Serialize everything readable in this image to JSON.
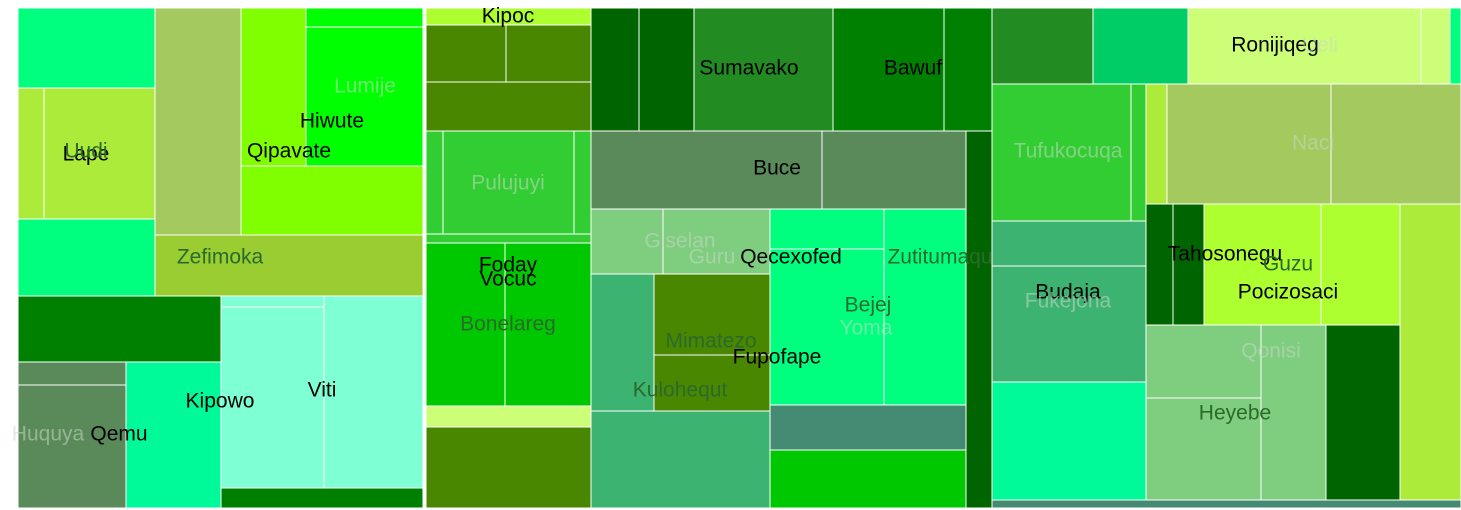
{
  "chart_data": {
    "type": "treemap",
    "legend": "none",
    "label_colors": {
      "dark": "#000000",
      "muted": "#2b6a2b",
      "faint": "#c8d8c8"
    },
    "nodes": [
      {
        "name": "Lape",
        "label": "Lape",
        "label_tone": "dark",
        "color": "#00FF7F",
        "value": 117,
        "level": "top"
      },
      {
        "name": "Zefimoka",
        "label": "Zefimoka",
        "label_tone": "muted",
        "color": "#9ACD32",
        "value": 44,
        "level": "top"
      },
      {
        "name": "Hiwute",
        "label": "Hiwute",
        "label_tone": "dark",
        "color": "#7FFF00",
        "value": 100,
        "level": "top"
      },
      {
        "name": "Lumije",
        "label": "Lumije",
        "label_tone": "faint",
        "color": "#00FF00",
        "value": 100,
        "level": "child"
      },
      {
        "name": "Qipavate",
        "label": "Qipavate",
        "label_tone": "dark",
        "color": "#7FFF00",
        "value": 40,
        "level": "child"
      },
      {
        "name": "Uudi",
        "label": "Uudi",
        "label_tone": "muted",
        "color": "#ADEB3A",
        "value": 24,
        "level": "child"
      },
      {
        "name": "Qemu",
        "label": "Qemu",
        "label_tone": "dark",
        "color": "#008000",
        "value": 75,
        "level": "top"
      },
      {
        "name": "Huquya",
        "label": "Huquya",
        "label_tone": "faint",
        "color": "#5A8A5A",
        "value": 40,
        "level": "child"
      },
      {
        "name": "Kipowo",
        "label": "Kipowo",
        "label_tone": "dark",
        "color": "#00FA9A",
        "value": 40,
        "level": "top"
      },
      {
        "name": "Viti",
        "label": "Viti",
        "label_tone": "dark",
        "color": "#7FFFD4",
        "value": 80,
        "level": "top"
      },
      {
        "name": "Kipoc",
        "label": "Kipoc",
        "label_tone": "dark",
        "color": "#ADFF2F",
        "value": 20,
        "level": "top"
      },
      {
        "name": "Pulujuyi",
        "label": "Pulujuyi",
        "label_tone": "faint",
        "color": "#32CD32",
        "value": 40,
        "level": "top"
      },
      {
        "name": "Foday",
        "label": "Foday",
        "label_tone": "dark",
        "color": "#00C800",
        "value": 60,
        "level": "top"
      },
      {
        "name": "Vocuc",
        "label": "Vocuc",
        "label_tone": "dark",
        "color": "#00C800",
        "value": 60,
        "level": "child"
      },
      {
        "name": "Bonelareg",
        "label": "Bonelareg",
        "label_tone": "muted",
        "color": "#00C800",
        "value": 30,
        "level": "child"
      },
      {
        "name": "Sumavako",
        "label": "Sumavako",
        "label_tone": "dark",
        "color": "#228B22",
        "value": 60,
        "level": "top"
      },
      {
        "name": "Bawuf",
        "label": "Bawuf",
        "label_tone": "dark",
        "color": "#008000",
        "value": 60,
        "level": "top"
      },
      {
        "name": "Buce",
        "label": "Buce",
        "label_tone": "dark",
        "color": "#5A8A5A",
        "value": 50,
        "level": "top"
      },
      {
        "name": "Giselan",
        "label": "Giselan",
        "label_tone": "faint",
        "color": "#7FCD7F",
        "value": 30,
        "level": "top"
      },
      {
        "name": "Guru",
        "label": "Guru",
        "label_tone": "faint",
        "color": "#7FCD7F",
        "value": 20,
        "level": "child"
      },
      {
        "name": "Qecexofed",
        "label": "Qecexofed",
        "label_tone": "dark",
        "color": "#00FF7F",
        "value": 20,
        "level": "top"
      },
      {
        "name": "Zutitumaqu",
        "label": "Zutitumaqu",
        "label_tone": "muted",
        "color": "#00FF7F",
        "value": 40,
        "level": "top"
      },
      {
        "name": "Bejej",
        "label": "Bejej",
        "label_tone": "muted",
        "color": "#00FF7F",
        "value": 50,
        "level": "top"
      },
      {
        "name": "Yoma",
        "label": "Yoma",
        "label_tone": "faint",
        "color": "#00FF7F",
        "value": 30,
        "level": "child"
      },
      {
        "name": "Mimatezo",
        "label": "Mimatezo",
        "label_tone": "muted",
        "color": "#4A8700",
        "value": 30,
        "level": "top"
      },
      {
        "name": "Fupofape",
        "label": "Fupofape",
        "label_tone": "dark",
        "color": "#00FF7F",
        "value": 40,
        "level": "top"
      },
      {
        "name": "Kulohequt",
        "label": "Kulohequt",
        "label_tone": "muted",
        "color": "#3CB371",
        "value": 50,
        "level": "top"
      },
      {
        "name": "Tufukocuqa",
        "label": "Tufukocuqa",
        "label_tone": "faint",
        "color": "#32CD32",
        "value": 50,
        "level": "top"
      },
      {
        "name": "Budaja",
        "label": "Budaja",
        "label_tone": "dark",
        "color": "#3CB371",
        "value": 60,
        "level": "top"
      },
      {
        "name": "Fukejona",
        "label": "Fukejona",
        "label_tone": "faint",
        "color": "#3CB371",
        "value": 30,
        "level": "child"
      },
      {
        "name": "Ronijiqeg",
        "label": "Ronijiqeg",
        "label_tone": "dark",
        "color": "#CCFF77",
        "value": 40,
        "level": "top"
      },
      {
        "name": "Ueli",
        "label": "Ueli",
        "label_tone": "faint",
        "color": "#CCFF77",
        "value": 10,
        "level": "child"
      },
      {
        "name": "Naci",
        "label": "Naci",
        "label_tone": "faint",
        "color": "#A3C95F",
        "value": 50,
        "level": "top"
      },
      {
        "name": "Tahosonegu",
        "label": "Tahosonegu",
        "label_tone": "dark",
        "color": "#006400",
        "value": 20,
        "level": "top"
      },
      {
        "name": "Guzu",
        "label": "Guzu",
        "label_tone": "muted",
        "color": "#ADFF2F",
        "value": 20,
        "level": "top"
      },
      {
        "name": "Pocizosaci",
        "label": "Pocizosaci",
        "label_tone": "dark",
        "color": "#ADFF2F",
        "value": 40,
        "level": "top"
      },
      {
        "name": "Qonisi",
        "label": "Qonisi",
        "label_tone": "faint",
        "color": "#7FCD7F",
        "value": 30,
        "level": "top"
      },
      {
        "name": "Heyebe",
        "label": "Heyebe",
        "label_tone": "muted",
        "color": "#7FCD7F",
        "value": 30,
        "level": "top"
      }
    ]
  }
}
